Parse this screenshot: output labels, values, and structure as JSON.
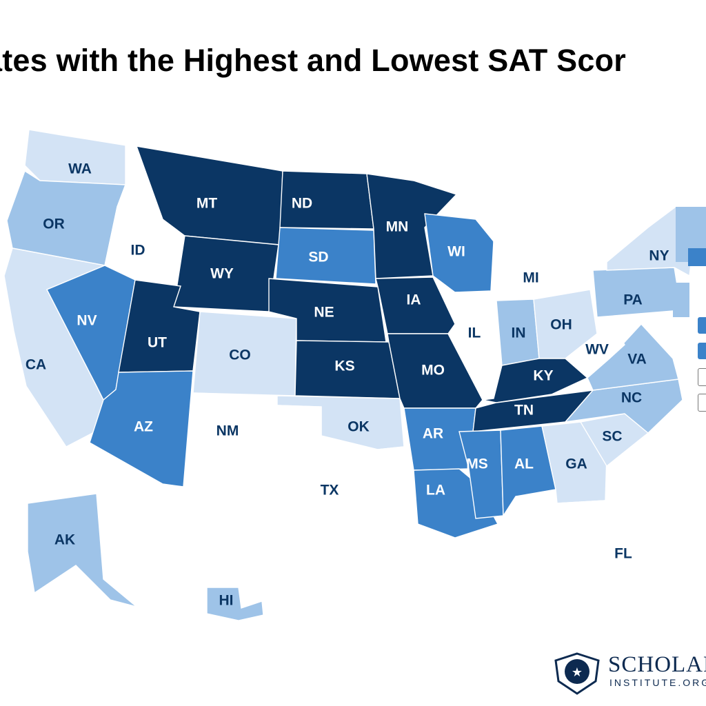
{
  "title": "ates with the Highest and Lowest SAT Scor",
  "colors": {
    "tier1": "#0b3664",
    "tier2": "#3b82c9",
    "tier3": "#9ec3e8",
    "tier4": "#d3e3f5",
    "tier5": "#ffffff",
    "border": "#c9d0da"
  },
  "states": [
    {
      "code": "WA",
      "tier": "tier4"
    },
    {
      "code": "OR",
      "tier": "tier3"
    },
    {
      "code": "CA",
      "tier": "tier4"
    },
    {
      "code": "ID",
      "tier": "tier5"
    },
    {
      "code": "NV",
      "tier": "tier2"
    },
    {
      "code": "MT",
      "tier": "tier1"
    },
    {
      "code": "WY",
      "tier": "tier1"
    },
    {
      "code": "UT",
      "tier": "tier1"
    },
    {
      "code": "AZ",
      "tier": "tier2"
    },
    {
      "code": "CO",
      "tier": "tier4"
    },
    {
      "code": "NM",
      "tier": "tier5"
    },
    {
      "code": "ND",
      "tier": "tier1"
    },
    {
      "code": "SD",
      "tier": "tier2"
    },
    {
      "code": "NE",
      "tier": "tier1"
    },
    {
      "code": "KS",
      "tier": "tier1"
    },
    {
      "code": "OK",
      "tier": "tier4"
    },
    {
      "code": "TX",
      "tier": "tier5"
    },
    {
      "code": "MN",
      "tier": "tier1"
    },
    {
      "code": "IA",
      "tier": "tier1"
    },
    {
      "code": "MO",
      "tier": "tier1"
    },
    {
      "code": "AR",
      "tier": "tier2"
    },
    {
      "code": "LA",
      "tier": "tier2"
    },
    {
      "code": "WI",
      "tier": "tier2"
    },
    {
      "code": "IL",
      "tier": "tier5"
    },
    {
      "code": "MS",
      "tier": "tier2"
    },
    {
      "code": "AL",
      "tier": "tier2"
    },
    {
      "code": "TN",
      "tier": "tier1"
    },
    {
      "code": "KY",
      "tier": "tier1"
    },
    {
      "code": "IN",
      "tier": "tier3"
    },
    {
      "code": "OH",
      "tier": "tier4"
    },
    {
      "code": "MI",
      "tier": "tier5"
    },
    {
      "code": "GA",
      "tier": "tier4"
    },
    {
      "code": "FL",
      "tier": "tier5"
    },
    {
      "code": "SC",
      "tier": "tier4"
    },
    {
      "code": "NC",
      "tier": "tier3"
    },
    {
      "code": "VA",
      "tier": "tier3"
    },
    {
      "code": "WV",
      "tier": "tier5"
    },
    {
      "code": "PA",
      "tier": "tier3"
    },
    {
      "code": "NY",
      "tier": "tier4"
    },
    {
      "code": "AK",
      "tier": "tier3"
    },
    {
      "code": "HI",
      "tier": "tier3"
    }
  ],
  "logo": {
    "name": "SCHOLARSI",
    "subtitle": "INSTITUTE.ORG"
  }
}
